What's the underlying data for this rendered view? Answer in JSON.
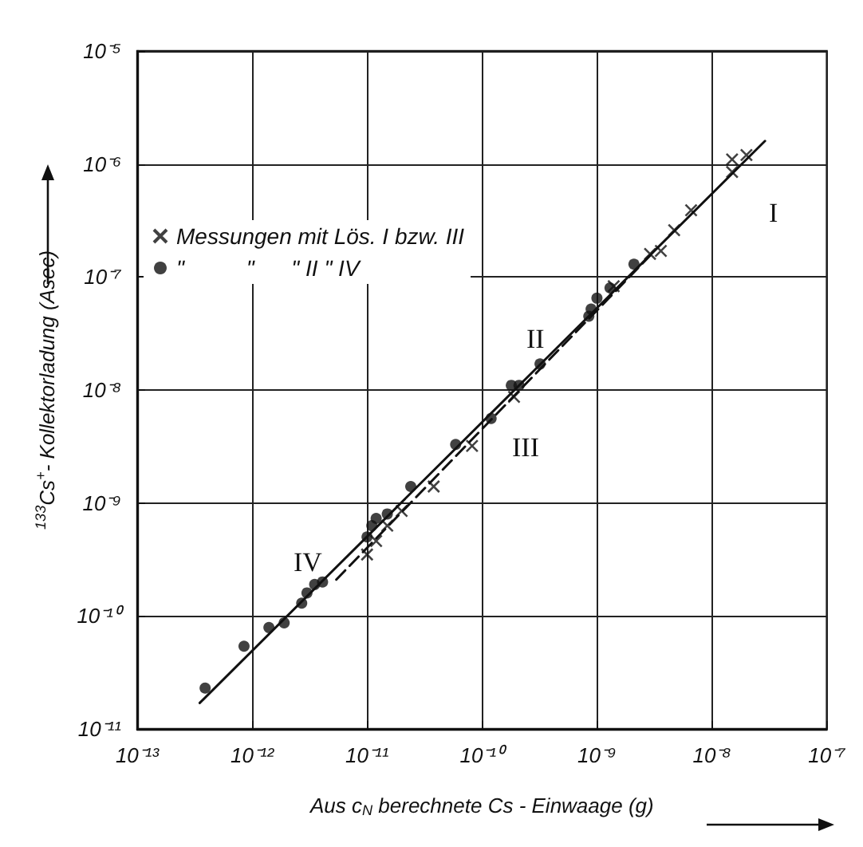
{
  "chart_data": {
    "type": "scatter",
    "xlabel": "Aus c$_{N}$ berechnete Cs - Einwaage (g)",
    "ylabel": "$^{133}$Cs$^{+}$- Kollektorladung (Asec)",
    "log": "xy",
    "grid": true,
    "legend": "top left",
    "xlim": [
      1e-13,
      1e-07
    ],
    "ylim": [
      1e-11,
      1e-05
    ],
    "xticks": [
      {
        "value": 1e-13,
        "label": "10⁻¹³"
      },
      {
        "value": 1e-12,
        "label": "10⁻¹²"
      },
      {
        "value": 1e-11,
        "label": "10⁻¹¹"
      },
      {
        "value": 1e-10,
        "label": "10⁻¹⁰"
      },
      {
        "value": 1e-09,
        "label": "10⁻⁹"
      },
      {
        "value": 1e-08,
        "label": "10⁻⁸"
      },
      {
        "value": 1e-07,
        "label": "10⁻⁷"
      }
    ],
    "yticks": [
      {
        "value": 1e-11,
        "label": "10⁻¹¹"
      },
      {
        "value": 1e-10,
        "label": "10⁻¹⁰"
      },
      {
        "value": 1e-09,
        "label": "10⁻⁹"
      },
      {
        "value": 1e-08,
        "label": "10⁻⁸"
      },
      {
        "value": 1e-07,
        "label": "10⁻⁷"
      },
      {
        "value": 1e-06,
        "label": "10⁻⁶"
      },
      {
        "value": 1e-05,
        "label": "10⁻⁵"
      }
    ],
    "series": [
      {
        "name": "Messungen mit Lös. I bzw. III",
        "color": "#111111",
        "marker": "cross",
        "x": [
          2e-08,
          1.5e-08,
          1.5e-08,
          6.6e-09,
          4.7e-09,
          3.6e-09,
          2.9e-09,
          1.4e-09,
          1.9e-10,
          8.2e-11,
          3.8e-11,
          2e-11,
          1.5e-11,
          1.2e-11,
          1e-11
        ],
        "values": [
          1.2e-06,
          1.1e-06,
          8.5e-07,
          3.9e-07,
          2.6e-07,
          1.7e-07,
          1.6e-07,
          8.3e-08,
          8.7e-09,
          3.2e-09,
          1.4e-09,
          8.5e-10,
          6.3e-10,
          4.6e-10,
          3.5e-10
        ]
      },
      {
        "name": "\"          \"      \" II \" IV",
        "color": "#111111",
        "marker": "circle",
        "x": [
          3.9e-13,
          8.5e-13,
          1.4e-12,
          1.9e-12,
          2.7e-12,
          3e-12,
          3.5e-12,
          4.1e-12,
          1e-11,
          1.1e-11,
          1.2e-11,
          1.5e-11,
          2.4e-11,
          5.9e-11,
          1.2e-10,
          1.8e-10,
          2.1e-10,
          3.2e-10,
          8.5e-10,
          8.9e-10,
          1e-09,
          1.3e-09,
          2.1e-09
        ],
        "values": [
          2.3e-11,
          5.4e-11,
          7.9e-11,
          8.7e-11,
          1.3e-10,
          1.6e-10,
          1.9e-10,
          2e-10,
          5e-10,
          6.3e-10,
          7.3e-10,
          8e-10,
          1.4e-09,
          3.3e-09,
          5.6e-09,
          1.1e-08,
          1.1e-08,
          1.7e-08,
          4.5e-08,
          5.2e-08,
          6.5e-08,
          8e-08,
          1.3e-07
        ]
      },
      {
        "type": "line",
        "color": "#111111",
        "marker": "none",
        "line_style": "solid",
        "x": [
          3.5e-13,
          2.9e-08
        ],
        "values": [
          1.7e-11,
          1.6e-06
        ]
      },
      {
        "type": "line",
        "color": "#111111",
        "marker": "none",
        "line_style": "dashed",
        "x": [
          5.4e-12,
          2.9e-09
        ],
        "values": [
          2.1e-10,
          1.55e-07
        ]
      }
    ],
    "annotations": [
      "I",
      "II",
      "III",
      "IV"
    ]
  }
}
